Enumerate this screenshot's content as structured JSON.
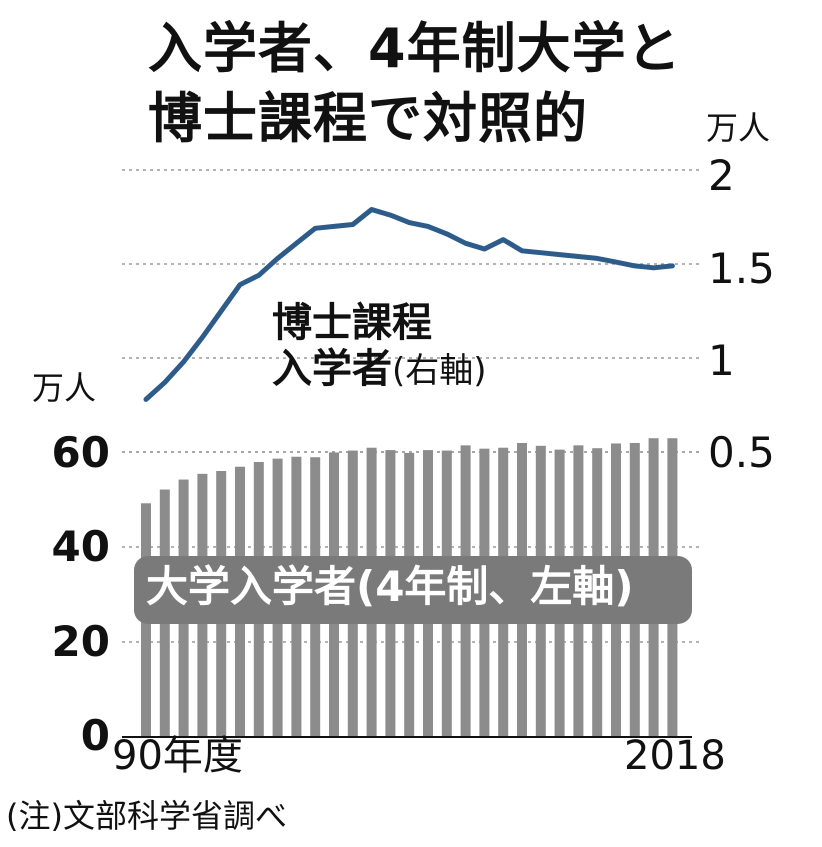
{
  "title": {
    "line1": "入学者、4年制大学と",
    "line2": "博士課程で対照的"
  },
  "note": "(注)文部科学省調べ",
  "chart_data": {
    "type": "bar",
    "x": [
      1990,
      1991,
      1992,
      1993,
      1994,
      1995,
      1996,
      1997,
      1998,
      1999,
      2000,
      2001,
      2002,
      2003,
      2004,
      2005,
      2006,
      2007,
      2008,
      2009,
      2010,
      2011,
      2012,
      2013,
      2014,
      2015,
      2016,
      2017,
      2018
    ],
    "x_tick_labels": {
      "start": "90年度",
      "end": "2018"
    },
    "series": [
      {
        "name": "大学入学者(4年制、左軸)",
        "type": "bar",
        "axis": "left",
        "color": "#8c8c8c",
        "values": [
          49.2,
          52.1,
          54.2,
          55.4,
          56.0,
          56.9,
          57.9,
          58.6,
          59.0,
          58.9,
          59.9,
          60.3,
          60.9,
          60.4,
          59.8,
          60.4,
          60.3,
          61.4,
          60.7,
          60.9,
          61.9,
          61.3,
          60.5,
          61.4,
          60.8,
          61.8,
          61.9,
          62.9,
          62.9
        ]
      },
      {
        "name": "博士課程入学者(右軸)",
        "type": "line",
        "axis": "right",
        "color": "#2e5c8a",
        "values": [
          0.78,
          0.87,
          0.98,
          1.11,
          1.25,
          1.39,
          1.44,
          1.53,
          1.61,
          1.69,
          1.7,
          1.71,
          1.79,
          1.76,
          1.72,
          1.7,
          1.66,
          1.61,
          1.58,
          1.63,
          1.57,
          1.56,
          1.55,
          1.54,
          1.53,
          1.51,
          1.49,
          1.48,
          1.49
        ]
      }
    ],
    "y_left": {
      "unit": "万人",
      "min": 0,
      "max": 60,
      "ticks": [
        0,
        20,
        40,
        60
      ]
    },
    "y_right": {
      "unit": "万人",
      "min": 0.5,
      "max": 2.0,
      "ticks": [
        0.5,
        1.0,
        1.5,
        2.0
      ]
    },
    "grid": true
  }
}
